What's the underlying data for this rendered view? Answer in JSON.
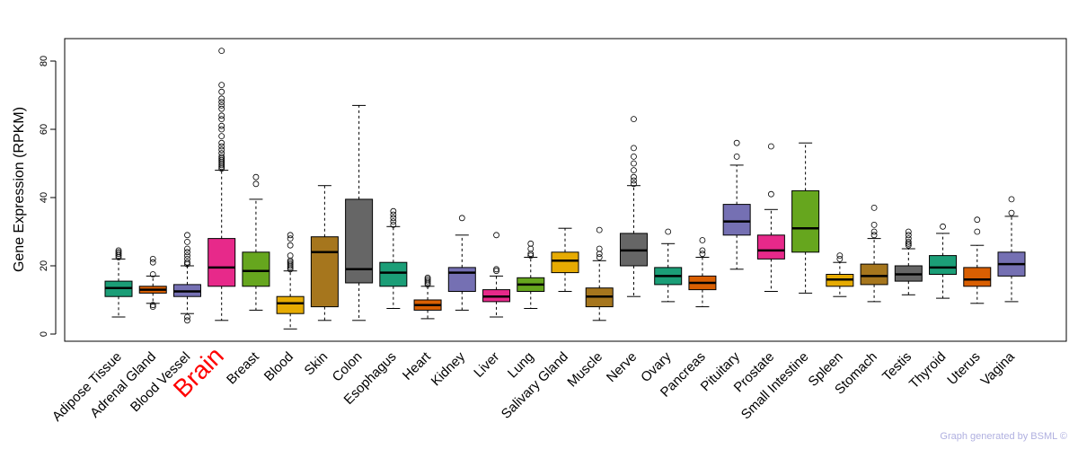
{
  "chart_data": {
    "type": "boxplot",
    "ylabel": "Gene Expression (RPKM)",
    "xlabel": "",
    "ylim": [
      -2,
      86
    ],
    "yticks": [
      0,
      20,
      40,
      60,
      80
    ],
    "highlight": "Brain",
    "highlight_color": "#ff0000",
    "boxes": [
      {
        "label": "Adipose Tissue",
        "color": "#1b9e77",
        "whisker_low": 5,
        "q1": 11,
        "median": 13.5,
        "q3": 15.5,
        "whisker_high": 22,
        "outliers": [
          22.5,
          23,
          23.5,
          24,
          24.5
        ]
      },
      {
        "label": "Adrenal Gland",
        "color": "#d95f02",
        "whisker_low": 9,
        "q1": 12,
        "median": 13,
        "q3": 14,
        "whisker_high": 17,
        "outliers": [
          8,
          8.5,
          17.5,
          21,
          22
        ]
      },
      {
        "label": "Blood Vessel",
        "color": "#7570b3",
        "whisker_low": 6,
        "q1": 11,
        "median": 12.5,
        "q3": 14.5,
        "whisker_high": 20,
        "outliers": [
          4,
          5,
          20.5,
          21,
          22,
          23,
          24,
          25,
          27,
          29
        ]
      },
      {
        "label": "Brain",
        "color": "#e7298a",
        "whisker_low": 4,
        "q1": 14,
        "median": 19.5,
        "q3": 28,
        "whisker_high": 48,
        "outliers": [
          48.5,
          49,
          49.5,
          50,
          50.5,
          51,
          51.5,
          52,
          53,
          54,
          55,
          56,
          58,
          60,
          61,
          63,
          64,
          66,
          67,
          68,
          69,
          71,
          73,
          83
        ]
      },
      {
        "label": "Breast",
        "color": "#66a61e",
        "whisker_low": 7,
        "q1": 14,
        "median": 18.5,
        "q3": 24,
        "whisker_high": 39.5,
        "outliers": [
          44,
          46
        ]
      },
      {
        "label": "Blood",
        "color": "#e6ab02",
        "whisker_low": 1.5,
        "q1": 6,
        "median": 9,
        "q3": 11,
        "whisker_high": 18.5,
        "outliers": [
          19,
          19.5,
          20,
          20.5,
          21,
          21.5,
          23,
          26,
          28,
          29
        ]
      },
      {
        "label": "Skin",
        "color": "#a6761d",
        "whisker_low": 4,
        "q1": 8,
        "median": 24,
        "q3": 28.5,
        "whisker_high": 43.5,
        "outliers": []
      },
      {
        "label": "Colon",
        "color": "#666666",
        "whisker_low": 4,
        "q1": 15,
        "median": 19,
        "q3": 39.5,
        "whisker_high": 67,
        "outliers": []
      },
      {
        "label": "Esophagus",
        "color": "#1b9e77",
        "whisker_low": 7.5,
        "q1": 14,
        "median": 18,
        "q3": 21,
        "whisker_high": 31.5,
        "outliers": [
          32,
          33,
          34,
          35,
          36
        ]
      },
      {
        "label": "Heart",
        "color": "#d95f02",
        "whisker_low": 4.5,
        "q1": 7,
        "median": 8.5,
        "q3": 10,
        "whisker_high": 14,
        "outliers": [
          14.5,
          15,
          15.5,
          16,
          16.5
        ]
      },
      {
        "label": "Kidney",
        "color": "#7570b3",
        "whisker_low": 7,
        "q1": 12.5,
        "median": 18,
        "q3": 19.5,
        "whisker_high": 29,
        "outliers": [
          34
        ]
      },
      {
        "label": "Liver",
        "color": "#e7298a",
        "whisker_low": 5,
        "q1": 9.5,
        "median": 11,
        "q3": 13,
        "whisker_high": 17,
        "outliers": [
          18.5,
          19,
          29
        ]
      },
      {
        "label": "Lung",
        "color": "#66a61e",
        "whisker_low": 7.5,
        "q1": 12.5,
        "median": 14.5,
        "q3": 16.5,
        "whisker_high": 22.5,
        "outliers": [
          23,
          23.5,
          25,
          26.5
        ]
      },
      {
        "label": "Salivary Gland",
        "color": "#e6ab02",
        "whisker_low": 12.5,
        "q1": 18,
        "median": 21.5,
        "q3": 24,
        "whisker_high": 31,
        "outliers": []
      },
      {
        "label": "Muscle",
        "color": "#a6761d",
        "whisker_low": 4,
        "q1": 8,
        "median": 11,
        "q3": 13.5,
        "whisker_high": 21.5,
        "outliers": [
          22.5,
          23.5,
          25,
          30.5
        ]
      },
      {
        "label": "Nerve",
        "color": "#666666",
        "whisker_low": 11,
        "q1": 20,
        "median": 24.5,
        "q3": 29.5,
        "whisker_high": 43.5,
        "outliers": [
          44,
          45,
          46,
          48,
          50,
          52,
          54.5,
          63
        ]
      },
      {
        "label": "Ovary",
        "color": "#1b9e77",
        "whisker_low": 9.5,
        "q1": 14.5,
        "median": 17,
        "q3": 19.5,
        "whisker_high": 26.5,
        "outliers": [
          30
        ]
      },
      {
        "label": "Pancreas",
        "color": "#d95f02",
        "whisker_low": 8,
        "q1": 13,
        "median": 15,
        "q3": 17,
        "whisker_high": 22.5,
        "outliers": [
          23.5,
          24.5,
          27.5
        ]
      },
      {
        "label": "Pituitary",
        "color": "#7570b3",
        "whisker_low": 19,
        "q1": 29,
        "median": 33,
        "q3": 38,
        "whisker_high": 49.5,
        "outliers": [
          52,
          56
        ]
      },
      {
        "label": "Prostate",
        "color": "#e7298a",
        "whisker_low": 12.5,
        "q1": 22,
        "median": 24.5,
        "q3": 29,
        "whisker_high": 36.5,
        "outliers": [
          41,
          55
        ]
      },
      {
        "label": "Small Intestine",
        "color": "#66a61e",
        "whisker_low": 12,
        "q1": 24,
        "median": 31,
        "q3": 42,
        "whisker_high": 56,
        "outliers": []
      },
      {
        "label": "Spleen",
        "color": "#e6ab02",
        "whisker_low": 11,
        "q1": 14,
        "median": 16,
        "q3": 17.5,
        "whisker_high": 21,
        "outliers": [
          22,
          23
        ]
      },
      {
        "label": "Stomach",
        "color": "#a6761d",
        "whisker_low": 9.5,
        "q1": 14.5,
        "median": 17,
        "q3": 20.5,
        "whisker_high": 28,
        "outliers": [
          29,
          30,
          32,
          37
        ]
      },
      {
        "label": "Testis",
        "color": "#666666",
        "whisker_low": 11.5,
        "q1": 15.5,
        "median": 17.5,
        "q3": 20,
        "whisker_high": 25,
        "outliers": [
          26,
          26.5,
          27,
          28,
          29,
          30
        ]
      },
      {
        "label": "Thyroid",
        "color": "#1b9e77",
        "whisker_low": 10.5,
        "q1": 17.5,
        "median": 19.5,
        "q3": 23,
        "whisker_high": 29.5,
        "outliers": [
          31.5
        ]
      },
      {
        "label": "Uterus",
        "color": "#d95f02",
        "whisker_low": 9,
        "q1": 14,
        "median": 16,
        "q3": 19.5,
        "whisker_high": 26,
        "outliers": [
          30,
          33.5
        ]
      },
      {
        "label": "Vagina",
        "color": "#7570b3",
        "whisker_low": 9.5,
        "q1": 17,
        "median": 20.5,
        "q3": 24,
        "whisker_high": 34.5,
        "outliers": [
          35.5,
          39.5
        ]
      }
    ]
  },
  "credit": "Graph generated by BSML ©",
  "colors": {
    "credit": "#b0b0e0",
    "axis": "#000000",
    "highlight": "#ff0000"
  }
}
